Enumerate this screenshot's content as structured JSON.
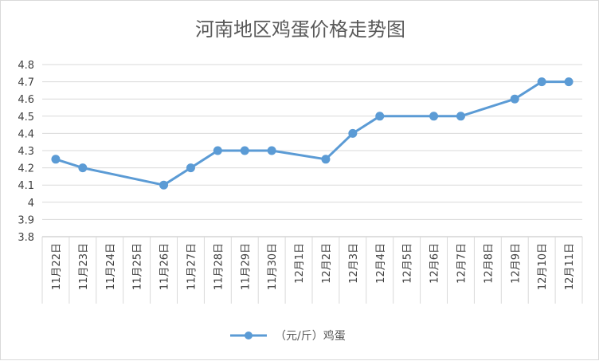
{
  "chart_data": {
    "type": "line",
    "title": "河南地区鸡蛋价格走势图",
    "categories": [
      "11月22日",
      "11月23日",
      "11月24日",
      "11月25日",
      "11月26日",
      "11月27日",
      "11月28日",
      "11月29日",
      "11月30日",
      "12月1日",
      "12月2日",
      "12月3日",
      "12月4日",
      "12月5日",
      "12月6日",
      "12月7日",
      "12月8日",
      "12月9日",
      "12月10日",
      "12月11日"
    ],
    "series": [
      {
        "name": "（元/斤）鸡蛋",
        "values": [
          4.25,
          4.2,
          null,
          null,
          4.1,
          4.2,
          4.3,
          4.3,
          4.3,
          null,
          4.25,
          4.4,
          4.5,
          null,
          4.5,
          4.5,
          null,
          4.6,
          4.7,
          4.7
        ]
      }
    ],
    "yticks": [
      "3.8",
      "3.9",
      "4",
      "4.1",
      "4.2",
      "4.3",
      "4.4",
      "4.5",
      "4.6",
      "4.7",
      "4.8"
    ],
    "ylim": [
      3.8,
      4.8
    ],
    "grid": true,
    "legend_position": "bottom",
    "series_color": "#5b9bd5"
  }
}
